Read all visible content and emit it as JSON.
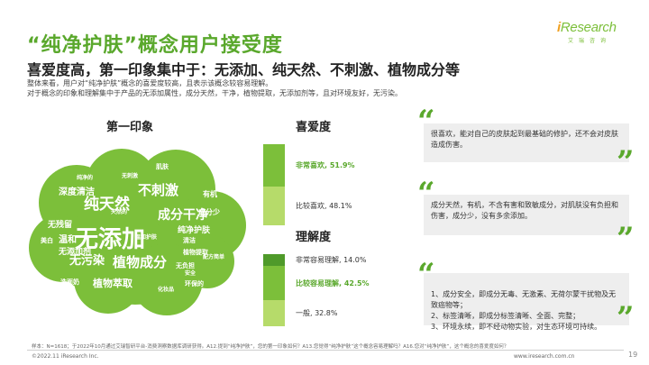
{
  "title": "“纯净护肤”概念用户接受度",
  "logo": {
    "main_prefix": "i",
    "main_rest": "Research",
    "sub": "艾瑞咨询"
  },
  "headline": "喜爱度高，第一印象集中于：无添加、纯天然、不刺激、植物成分等",
  "description": {
    "line1": "整体来看，用户对“纯净护肤”概念的喜爱度较高，且表示该概念较容易理解。",
    "line2": "对于概念的印象和理解集中于产品的无添加属性，成分天然，干净，植物提取，无添加剂等，且对环境友好，无污染。"
  },
  "headers": {
    "first_impression": "第一印象",
    "liking": "喜爱度",
    "understanding": "理解度"
  },
  "word_cloud": [
    {
      "text": "无添加",
      "size": 26
    },
    {
      "text": "植物成分",
      "size": 15
    },
    {
      "text": "纯天然",
      "size": 17
    },
    {
      "text": "不刺激",
      "size": 15
    },
    {
      "text": "成分干净",
      "size": 14
    },
    {
      "text": "无污染",
      "size": 13
    },
    {
      "text": "植物萃取",
      "size": 11
    },
    {
      "text": "深度清洁",
      "size": 10
    },
    {
      "text": "纯净护肤",
      "size": 9
    },
    {
      "text": "温和",
      "size": 10
    },
    {
      "text": "无残留",
      "size": 9
    },
    {
      "text": "无添加剂",
      "size": 9
    },
    {
      "text": "有机",
      "size": 8
    },
    {
      "text": "成分少",
      "size": 8
    },
    {
      "text": "肌肤",
      "size": 7
    },
    {
      "text": "环保的",
      "size": 7
    },
    {
      "text": "洗面奶",
      "size": 7
    },
    {
      "text": "美白",
      "size": 7
    },
    {
      "text": "无负担",
      "size": 7
    },
    {
      "text": "植物提取",
      "size": 7
    },
    {
      "text": "天然的",
      "size": 6
    },
    {
      "text": "清洁",
      "size": 7
    },
    {
      "text": "安全",
      "size": 6
    },
    {
      "text": "配方简单",
      "size": 6
    },
    {
      "text": "温和护肤",
      "size": 6
    },
    {
      "text": "无刺激",
      "size": 6
    },
    {
      "text": "化妆品",
      "size": 6
    },
    {
      "text": "纯净的",
      "size": 6
    }
  ],
  "liking": [
    {
      "label": "非常喜欢, 51.9%",
      "value": 51.9,
      "color": "#7cbf3a",
      "highlight": true
    },
    {
      "label": "比较喜欢, 48.1%",
      "value": 48.1,
      "color": "#b6db6a",
      "highlight": false
    }
  ],
  "understanding": [
    {
      "label": "非常容易理解, 14.0%",
      "value": 14.0,
      "color": "#4f9a2a",
      "highlight": false
    },
    {
      "label": "比较容易理解, 42.5%",
      "value": 42.5,
      "color": "#7cbf3a",
      "highlight": true
    },
    {
      "label": "一般, 32.8%",
      "value": 32.8,
      "color": "#b6db6a",
      "highlight": false
    }
  ],
  "quotes": [
    {
      "text": "很喜欢，能对自己的皮肤起到最基础的修护，还不会对皮肤造成伤害。"
    },
    {
      "text": "成分天然，有机，不含有害和致敏成分，对肌肤没有负担和伤害，成分少，没有多余添加。"
    },
    {
      "text": "1、成分安全，即成分无毒、无激素、无荷尔蒙干扰物及无致癌物等；\n2、标签清晰，即成分标签清晰、全面、完整；\n3、环境永续，即不经动物实验，对生态环境可持续。"
    }
  ],
  "quote_marks": {
    "open": "“",
    "close": "”"
  },
  "note": "样本：N=1618；于2022年10月通过艾瑞智研平台-消费洞察数据库调研获得。A12.提到“纯净护肤”，您的第一印象如何？A13.您觉得“纯净护肤”这个概念容易理解吗？A16.您对“纯净护肤”，这个概念的喜爱度如何？",
  "footer": {
    "left": "©2022.11 iResearch Inc.",
    "right": "www.iresearch.com.cn",
    "page": "19"
  },
  "colors": {
    "accent": "#5aa82c",
    "cloud": "#7cbf3a",
    "light": "#b6db6a",
    "dark": "#4f9a2a"
  }
}
